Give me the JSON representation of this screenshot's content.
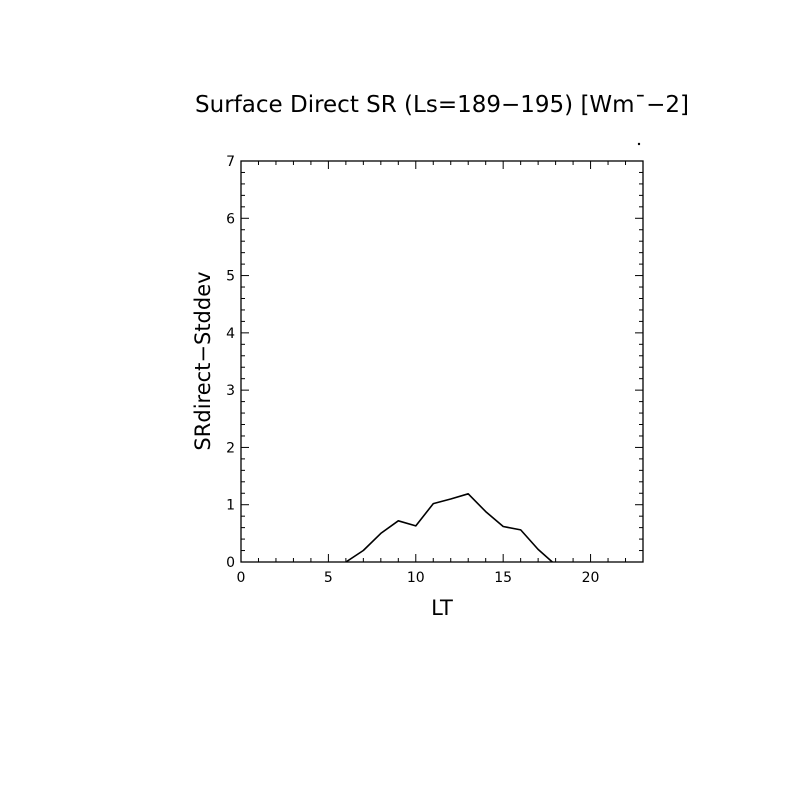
{
  "chart_data": {
    "type": "line",
    "title": "Surface Direct SR (Ls=189−195) [Wm¯−2]",
    "xlabel": "LT",
    "ylabel": "SRdirect−Stddev",
    "xlim": [
      0,
      23
    ],
    "ylim": [
      0,
      7
    ],
    "x_ticks": [
      0,
      5,
      10,
      15,
      20
    ],
    "x_tick_labels": [
      "0",
      "5",
      "10",
      "15",
      "20"
    ],
    "y_ticks": [
      0,
      1,
      2,
      3,
      4,
      5,
      6,
      7
    ],
    "y_tick_labels": [
      "0",
      "1",
      "2",
      "3",
      "4",
      "5",
      "6",
      "7"
    ],
    "grid": false,
    "line_color": "#000000",
    "series": [
      {
        "x": [
          6,
          7,
          8,
          9,
          10,
          11,
          12,
          13,
          14,
          15,
          16,
          17,
          18
        ],
        "y": [
          0,
          0.2,
          0.5,
          0.72,
          0.63,
          1.02,
          1.1,
          1.19,
          0.88,
          0.62,
          0.56,
          0.22,
          -0.05
        ]
      }
    ]
  }
}
